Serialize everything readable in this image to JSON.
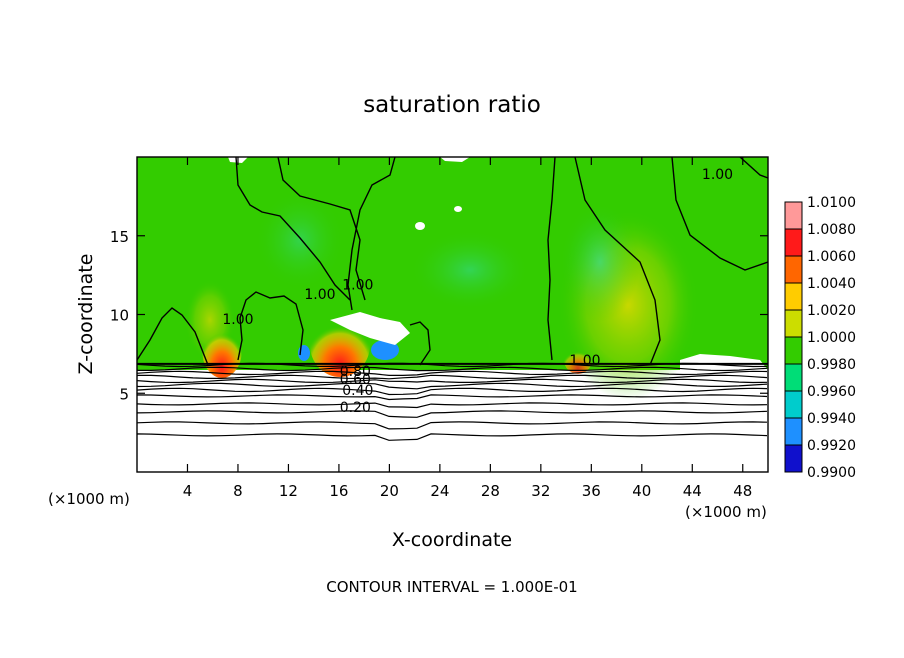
{
  "chart_data": {
    "type": "heatmap",
    "title": "saturation ratio",
    "xlabel": "X-coordinate",
    "ylabel": "Z-coordinate",
    "x_unit": "(×1000 m)",
    "xlim": [
      0,
      50
    ],
    "ylim": [
      0,
      20
    ],
    "x_ticks": [
      4,
      8,
      12,
      16,
      20,
      24,
      28,
      32,
      36,
      40,
      44,
      48
    ],
    "y_ticks": [
      5,
      10,
      15
    ],
    "footer": "CONTOUR INTERVAL = 1.000E-01",
    "colorbar": {
      "labels": [
        "1.0100",
        "1.0080",
        "1.0060",
        "1.0040",
        "1.0020",
        "1.0000",
        "0.9980",
        "0.9960",
        "0.9940",
        "0.9920",
        "0.9900"
      ],
      "colors": [
        "#ff9999",
        "#ff1a1a",
        "#ff6600",
        "#ffcc00",
        "#ccdd00",
        "#33cc00",
        "#00dd77",
        "#00cccc",
        "#1e90ff",
        "#1010cc",
        "#7700aa"
      ]
    },
    "contour_labels": [
      {
        "text": "1.00",
        "x": 8,
        "y": 9.4
      },
      {
        "text": "1.00",
        "x": 14.5,
        "y": 11
      },
      {
        "text": "1.00",
        "x": 17.5,
        "y": 11.6
      },
      {
        "text": "1.00",
        "x": 46,
        "y": 18.6
      },
      {
        "text": "1.00",
        "x": 35.5,
        "y": 6.8
      },
      {
        "text": "0.80",
        "x": 17.3,
        "y": 6.1
      },
      {
        "text": "0.60",
        "x": 17.3,
        "y": 5.6
      },
      {
        "text": "0.40",
        "x": 17.5,
        "y": 4.9
      },
      {
        "text": "0.20",
        "x": 17.3,
        "y": 3.8
      }
    ],
    "layer_top_z": 6.8
  }
}
